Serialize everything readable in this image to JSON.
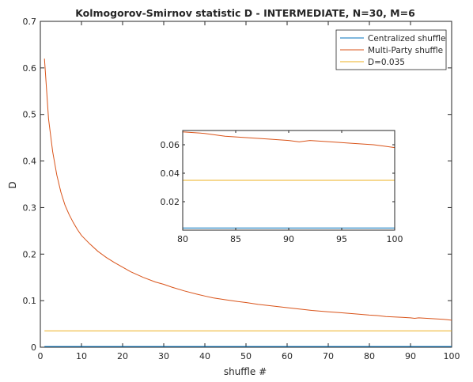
{
  "chart_data": {
    "type": "line",
    "title": "Kolmogorov-Smirnov statistic D - INTERMEDIATE, N=30, M=6",
    "xlabel": "shuffle #",
    "ylabel": "D",
    "xlim": [
      0,
      100
    ],
    "ylim": [
      0,
      0.7
    ],
    "x_ticks": [
      "0",
      "10",
      "20",
      "30",
      "40",
      "50",
      "60",
      "70",
      "80",
      "90",
      "100"
    ],
    "y_ticks": [
      "0",
      "0.1",
      "0.2",
      "0.3",
      "0.4",
      "0.5",
      "0.6",
      "0.7"
    ],
    "grid": false,
    "legend_position": "top-right",
    "series": [
      {
        "name": "Centralized shuffle",
        "color": "#0072BD",
        "x": [
          1,
          100
        ],
        "y": [
          0.0015,
          0.0015
        ]
      },
      {
        "name": "Multi-Party shuffle",
        "color": "#D95319",
        "x": [
          1,
          2,
          3,
          4,
          5,
          6,
          7,
          8,
          9,
          10,
          12,
          14,
          16,
          18,
          20,
          22,
          25,
          28,
          30,
          32,
          35,
          38,
          40,
          42,
          45,
          48,
          50,
          53,
          56,
          60,
          63,
          66,
          70,
          73,
          76,
          80,
          82,
          84,
          86,
          88,
          90,
          91,
          92,
          94,
          96,
          98,
          99,
          100
        ],
        "y": [
          0.62,
          0.49,
          0.42,
          0.37,
          0.333,
          0.305,
          0.285,
          0.268,
          0.253,
          0.24,
          0.222,
          0.206,
          0.193,
          0.182,
          0.172,
          0.162,
          0.15,
          0.14,
          0.135,
          0.129,
          0.121,
          0.114,
          0.11,
          0.106,
          0.102,
          0.098,
          0.096,
          0.092,
          0.089,
          0.085,
          0.082,
          0.079,
          0.076,
          0.074,
          0.072,
          0.069,
          0.068,
          0.066,
          0.065,
          0.064,
          0.063,
          0.062,
          0.063,
          0.062,
          0.061,
          0.06,
          0.059,
          0.058
        ]
      },
      {
        "name": "D=0.035",
        "color": "#EDB120",
        "x": [
          1,
          100
        ],
        "y": [
          0.035,
          0.035
        ]
      }
    ],
    "inset": {
      "xlim": [
        80,
        100
      ],
      "ylim": [
        0,
        0.07
      ],
      "x_ticks": [
        "80",
        "85",
        "90",
        "95",
        "100"
      ],
      "y_ticks": [
        "0.02",
        "0.04",
        "0.06"
      ]
    }
  }
}
